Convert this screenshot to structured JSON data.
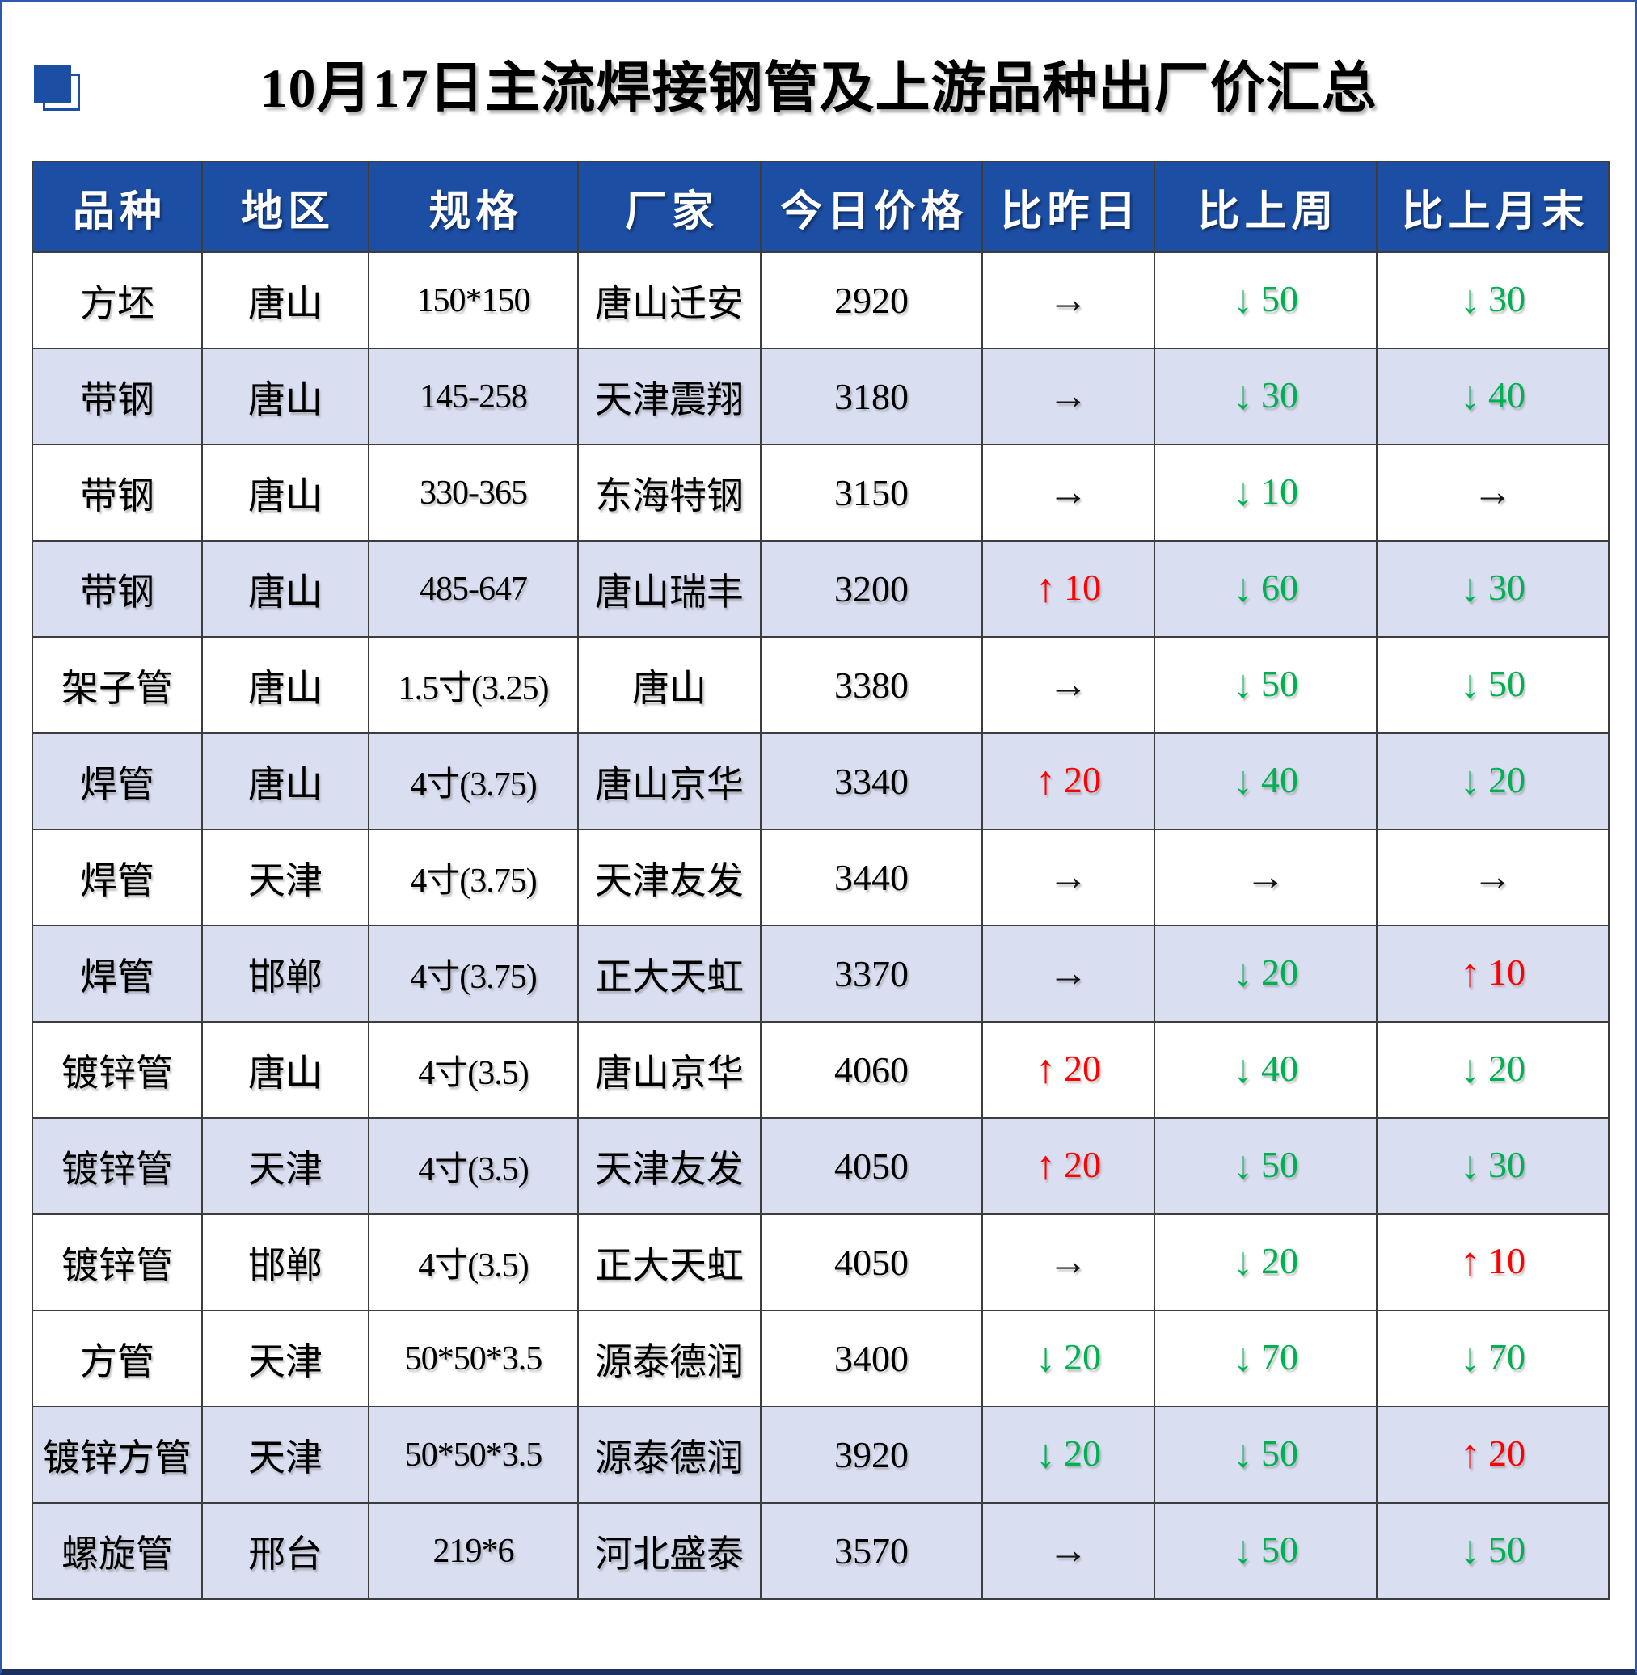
{
  "title": "10月17日主流焊接钢管及上游品种出厂价汇总",
  "icon": "blue-offset-squares",
  "colors": {
    "accent_blue": "#1c4ea4",
    "header_bg": "#1c4ea4",
    "row_shaded": "#d9def1",
    "up": "#fe0000",
    "down": "#00b052",
    "flat": "#141414"
  },
  "glyphs": {
    "up": "↑",
    "down": "↓",
    "flat": "→"
  },
  "table": {
    "headers": [
      "品种",
      "地区",
      "规格",
      "厂家",
      "今日价格",
      "比昨日",
      "比上周",
      "比上月末"
    ],
    "rows": [
      {
        "variety": "方坯",
        "region": "唐山",
        "spec": "150*150",
        "factory": "唐山迁安",
        "price": "2920",
        "shaded": false,
        "vs_yesterday": {
          "dir": "flat",
          "value": ""
        },
        "vs_last_week": {
          "dir": "down",
          "value": "50"
        },
        "vs_month_end": {
          "dir": "down",
          "value": "30"
        }
      },
      {
        "variety": "带钢",
        "region": "唐山",
        "spec": "145-258",
        "factory": "天津震翔",
        "price": "3180",
        "shaded": true,
        "vs_yesterday": {
          "dir": "flat",
          "value": ""
        },
        "vs_last_week": {
          "dir": "down",
          "value": "30"
        },
        "vs_month_end": {
          "dir": "down",
          "value": "40"
        }
      },
      {
        "variety": "带钢",
        "region": "唐山",
        "spec": "330-365",
        "factory": "东海特钢",
        "price": "3150",
        "shaded": false,
        "vs_yesterday": {
          "dir": "flat",
          "value": ""
        },
        "vs_last_week": {
          "dir": "down",
          "value": "10"
        },
        "vs_month_end": {
          "dir": "flat",
          "value": ""
        }
      },
      {
        "variety": "带钢",
        "region": "唐山",
        "spec": "485-647",
        "factory": "唐山瑞丰",
        "price": "3200",
        "shaded": true,
        "vs_yesterday": {
          "dir": "up",
          "value": "10"
        },
        "vs_last_week": {
          "dir": "down",
          "value": "60"
        },
        "vs_month_end": {
          "dir": "down",
          "value": "30"
        }
      },
      {
        "variety": "架子管",
        "region": "唐山",
        "spec": "1.5寸(3.25)",
        "factory": "唐山",
        "price": "3380",
        "shaded": false,
        "vs_yesterday": {
          "dir": "flat",
          "value": ""
        },
        "vs_last_week": {
          "dir": "down",
          "value": "50"
        },
        "vs_month_end": {
          "dir": "down",
          "value": "50"
        }
      },
      {
        "variety": "焊管",
        "region": "唐山",
        "spec": "4寸(3.75)",
        "factory": "唐山京华",
        "price": "3340",
        "shaded": true,
        "vs_yesterday": {
          "dir": "up",
          "value": "20"
        },
        "vs_last_week": {
          "dir": "down",
          "value": "40"
        },
        "vs_month_end": {
          "dir": "down",
          "value": "20"
        }
      },
      {
        "variety": "焊管",
        "region": "天津",
        "spec": "4寸(3.75)",
        "factory": "天津友发",
        "price": "3440",
        "shaded": false,
        "vs_yesterday": {
          "dir": "flat",
          "value": ""
        },
        "vs_last_week": {
          "dir": "flat",
          "value": ""
        },
        "vs_month_end": {
          "dir": "flat",
          "value": ""
        }
      },
      {
        "variety": "焊管",
        "region": "邯郸",
        "spec": "4寸(3.75)",
        "factory": "正大天虹",
        "price": "3370",
        "shaded": true,
        "vs_yesterday": {
          "dir": "flat",
          "value": ""
        },
        "vs_last_week": {
          "dir": "down",
          "value": "20"
        },
        "vs_month_end": {
          "dir": "up",
          "value": "10"
        }
      },
      {
        "variety": "镀锌管",
        "region": "唐山",
        "spec": "4寸(3.5)",
        "factory": "唐山京华",
        "price": "4060",
        "shaded": false,
        "vs_yesterday": {
          "dir": "up",
          "value": "20"
        },
        "vs_last_week": {
          "dir": "down",
          "value": "40"
        },
        "vs_month_end": {
          "dir": "down",
          "value": "20"
        }
      },
      {
        "variety": "镀锌管",
        "region": "天津",
        "spec": "4寸(3.5)",
        "factory": "天津友发",
        "price": "4050",
        "shaded": true,
        "vs_yesterday": {
          "dir": "up",
          "value": "20"
        },
        "vs_last_week": {
          "dir": "down",
          "value": "50"
        },
        "vs_month_end": {
          "dir": "down",
          "value": "30"
        }
      },
      {
        "variety": "镀锌管",
        "region": "邯郸",
        "spec": "4寸(3.5)",
        "factory": "正大天虹",
        "price": "4050",
        "shaded": false,
        "vs_yesterday": {
          "dir": "flat",
          "value": ""
        },
        "vs_last_week": {
          "dir": "down",
          "value": "20"
        },
        "vs_month_end": {
          "dir": "up",
          "value": "10"
        }
      },
      {
        "variety": "方管",
        "region": "天津",
        "spec": "50*50*3.5",
        "factory": "源泰德润",
        "price": "3400",
        "shaded": false,
        "vs_yesterday": {
          "dir": "down",
          "value": "20"
        },
        "vs_last_week": {
          "dir": "down",
          "value": "70"
        },
        "vs_month_end": {
          "dir": "down",
          "value": "70"
        }
      },
      {
        "variety": "镀锌方管",
        "region": "天津",
        "spec": "50*50*3.5",
        "factory": "源泰德润",
        "price": "3920",
        "shaded": true,
        "vs_yesterday": {
          "dir": "down",
          "value": "20"
        },
        "vs_last_week": {
          "dir": "down",
          "value": "50"
        },
        "vs_month_end": {
          "dir": "up",
          "value": "20"
        }
      },
      {
        "variety": "螺旋管",
        "region": "邢台",
        "spec": "219*6",
        "factory": "河北盛泰",
        "price": "3570",
        "shaded": true,
        "vs_yesterday": {
          "dir": "flat",
          "value": ""
        },
        "vs_last_week": {
          "dir": "down",
          "value": "50"
        },
        "vs_month_end": {
          "dir": "down",
          "value": "50"
        }
      }
    ]
  }
}
